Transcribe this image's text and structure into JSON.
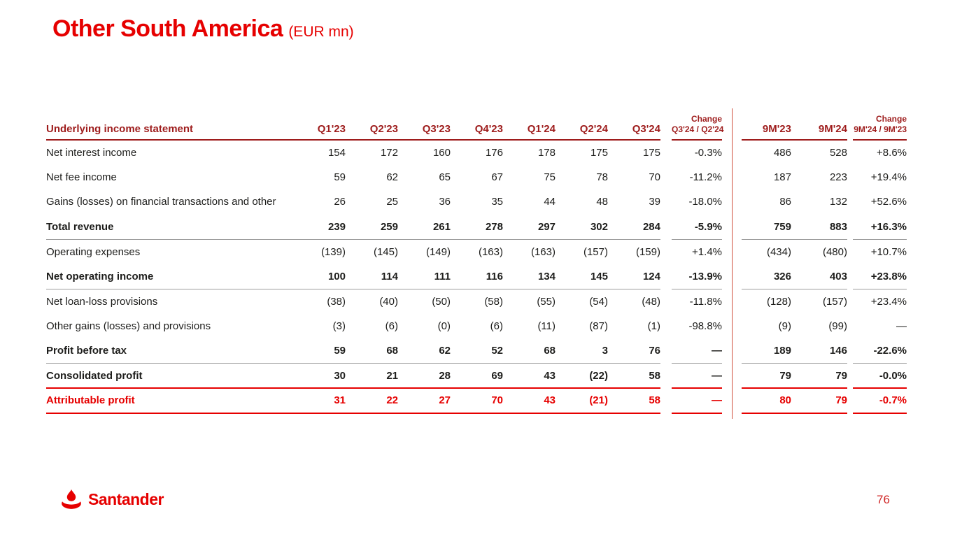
{
  "title": {
    "main": "Other South America",
    "unit": "(EUR mn)"
  },
  "table": {
    "label_header": "Underlying income statement",
    "quarter_headers": [
      "Q1'23",
      "Q2'23",
      "Q3'23",
      "Q4'23",
      "Q1'24",
      "Q2'24",
      "Q3'24"
    ],
    "change_q_header": {
      "top": "Change",
      "bottom": "Q3'24 / Q2'24"
    },
    "nine_month_headers": [
      "9M'23",
      "9M'24"
    ],
    "change_9m_header": {
      "top": "Change",
      "bottom": "9M'24 / 9M'23"
    },
    "rows": [
      {
        "label": "Net interest income",
        "values": [
          "154",
          "172",
          "160",
          "176",
          "178",
          "175",
          "175"
        ],
        "change_q": "-0.3%",
        "nine_m": [
          "486",
          "528"
        ],
        "change_9m": "+8.6%",
        "bold": false,
        "red": false,
        "rule": "none"
      },
      {
        "label": "Net fee income",
        "values": [
          "59",
          "62",
          "65",
          "67",
          "75",
          "78",
          "70"
        ],
        "change_q": "-11.2%",
        "nine_m": [
          "187",
          "223"
        ],
        "change_9m": "+19.4%",
        "bold": false,
        "red": false,
        "rule": "none"
      },
      {
        "label": "Gains (losses) on financial transactions and other",
        "values": [
          "26",
          "25",
          "36",
          "35",
          "44",
          "48",
          "39"
        ],
        "change_q": "-18.0%",
        "nine_m": [
          "86",
          "132"
        ],
        "change_9m": "+52.6%",
        "bold": false,
        "red": false,
        "rule": "none"
      },
      {
        "label": "Total revenue",
        "values": [
          "239",
          "259",
          "261",
          "278",
          "297",
          "302",
          "284"
        ],
        "change_q": "-5.9%",
        "nine_m": [
          "759",
          "883"
        ],
        "change_9m": "+16.3%",
        "bold": true,
        "red": false,
        "rule": "gray"
      },
      {
        "label": "Operating expenses",
        "values": [
          "(139)",
          "(145)",
          "(149)",
          "(163)",
          "(163)",
          "(157)",
          "(159)"
        ],
        "change_q": "+1.4%",
        "nine_m": [
          "(434)",
          "(480)"
        ],
        "change_9m": "+10.7%",
        "bold": false,
        "red": false,
        "rule": "none"
      },
      {
        "label": "Net operating income",
        "values": [
          "100",
          "114",
          "111",
          "116",
          "134",
          "145",
          "124"
        ],
        "change_q": "-13.9%",
        "nine_m": [
          "326",
          "403"
        ],
        "change_9m": "+23.8%",
        "bold": true,
        "red": false,
        "rule": "gray"
      },
      {
        "label": "Net loan-loss provisions",
        "values": [
          "(38)",
          "(40)",
          "(50)",
          "(58)",
          "(55)",
          "(54)",
          "(48)"
        ],
        "change_q": "-11.8%",
        "nine_m": [
          "(128)",
          "(157)"
        ],
        "change_9m": "+23.4%",
        "bold": false,
        "red": false,
        "rule": "none"
      },
      {
        "label": "Other gains (losses) and provisions",
        "values": [
          "(3)",
          "(6)",
          "(0)",
          "(6)",
          "(11)",
          "(87)",
          "(1)"
        ],
        "change_q": "-98.8%",
        "nine_m": [
          "(9)",
          "(99)"
        ],
        "change_9m": "—",
        "bold": false,
        "red": false,
        "rule": "none"
      },
      {
        "label": "Profit before tax",
        "values": [
          "59",
          "68",
          "62",
          "52",
          "68",
          "3",
          "76"
        ],
        "change_q": "—",
        "nine_m": [
          "189",
          "146"
        ],
        "change_9m": "-22.6%",
        "bold": true,
        "red": false,
        "rule": "gray"
      },
      {
        "label": "Consolidated profit",
        "values": [
          "30",
          "21",
          "28",
          "69",
          "43",
          "(22)",
          "58"
        ],
        "change_q": "—",
        "nine_m": [
          "79",
          "79"
        ],
        "change_9m": "-0.0%",
        "bold": true,
        "red": false,
        "rule": "red"
      },
      {
        "label": "Attributable profit",
        "values": [
          "31",
          "22",
          "27",
          "70",
          "43",
          "(21)",
          "58"
        ],
        "change_q": "—",
        "nine_m": [
          "80",
          "79"
        ],
        "change_9m": "-0.7%",
        "bold": true,
        "red": true,
        "rule": "red"
      }
    ]
  },
  "footer": {
    "logo_text": "Santander",
    "page_number": "76"
  },
  "colors": {
    "brand_red": "#e60000",
    "header_dark_red": "#9e1c1c",
    "divider_red": "#cf4f3c",
    "rule_gray": "#9d9d9d",
    "body_text": "#1d1d1b"
  }
}
